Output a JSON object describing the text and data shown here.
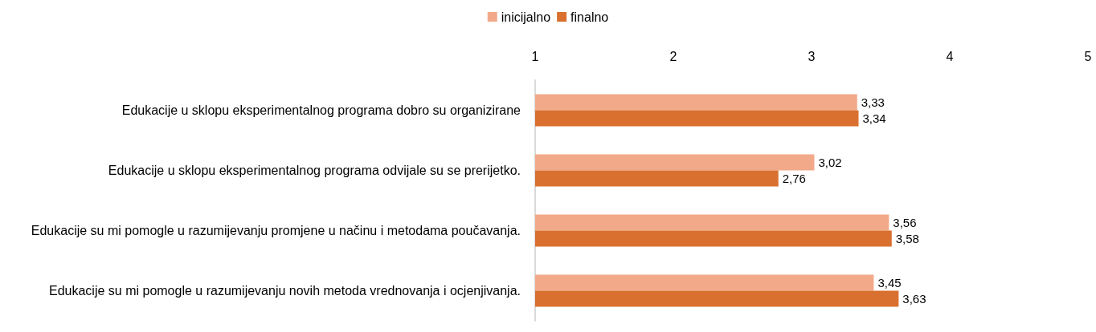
{
  "chart_data": {
    "type": "bar",
    "orientation": "horizontal",
    "categories": [
      "Edukacije u sklopu eksperimentalnog programa dobro su organizirane",
      "Edukacije u sklopu eksperimentalnog programa odvijale su se prerijetko.",
      "Edukacije su mi pomogle u razumijevanju promjene u načinu i metodama poučavanja.",
      "Edukacije su mi pomogle u razumijevanju novih metoda vrednovanja i ocjenjivanja."
    ],
    "series": [
      {
        "name": "inicijalno",
        "color": "#f2a98a",
        "values": [
          3.33,
          3.02,
          3.56,
          3.45
        ],
        "value_labels": [
          "3,33",
          "3,02",
          "3,56",
          "3,45"
        ]
      },
      {
        "name": "finalno",
        "color": "#d9702f",
        "values": [
          3.34,
          2.76,
          3.58,
          3.63
        ],
        "value_labels": [
          "3,34",
          "2,76",
          "3,58",
          "3,63"
        ]
      }
    ],
    "xlim": [
      1,
      5
    ],
    "xticks": [
      1,
      2,
      3,
      4,
      5
    ],
    "grid": false,
    "legend": "top"
  }
}
